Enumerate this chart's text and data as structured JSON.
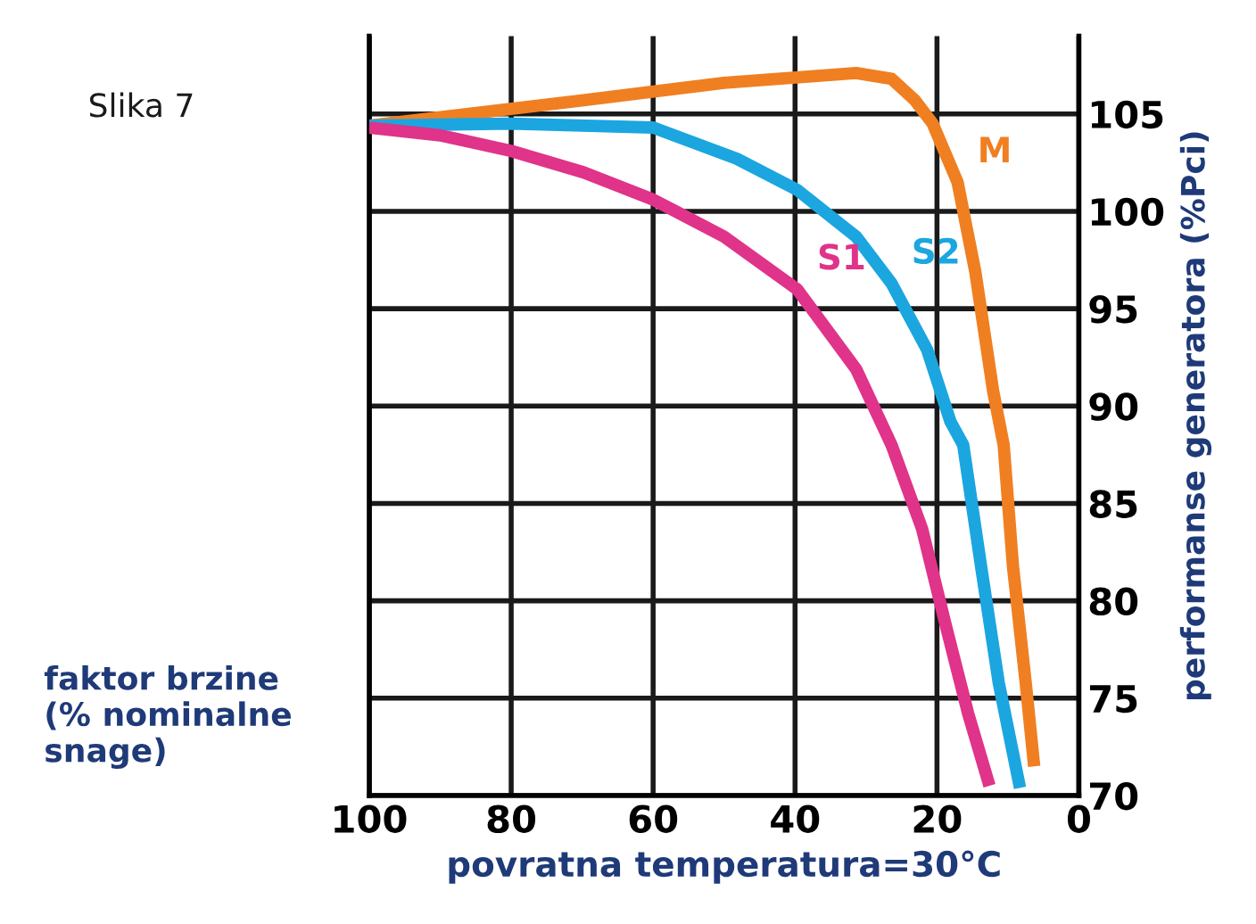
{
  "chart_data": {
    "type": "line",
    "xlabel": "povratna temperatura=30°C",
    "ylabel": "performanse generatora (%Pci)",
    "annotations": [
      "Slika 7",
      "faktor brzine\n(% nominalne\nsnage)"
    ],
    "xlim": [
      100,
      0
    ],
    "xticks": [
      100,
      80,
      60,
      40,
      20,
      0
    ],
    "ylim": [
      70,
      109
    ],
    "yticks": [
      70,
      75,
      80,
      85,
      90,
      95,
      100,
      105
    ],
    "grid": true,
    "marker": "none",
    "line_style": "solid",
    "series": [
      {
        "name": "M",
        "color": "#f07f22",
        "x": [
          100,
          69.8,
          50,
          31.4,
          26.4,
          23.1,
          20.6,
          17.1,
          14.6,
          12.1,
          10.6,
          9.3,
          7.5,
          6.3
        ],
        "values": [
          104.4,
          105.7,
          106.6,
          107.1,
          106.8,
          105.7,
          104.5,
          101.5,
          96.9,
          90.8,
          88,
          81.8,
          75.8,
          71.5
        ]
      },
      {
        "name": "S2",
        "color": "#1ba6e0",
        "x": [
          100,
          80,
          60,
          48.2,
          39.7,
          31.4,
          26.4,
          21.4,
          18.1,
          16.3,
          13.8,
          11.3,
          8.3
        ],
        "values": [
          104.4,
          104.5,
          104.3,
          102.7,
          101.1,
          98.7,
          96.3,
          92.9,
          89.2,
          88,
          81.8,
          75.8,
          70.4
        ]
      },
      {
        "name": "S1",
        "color": "#e0338a",
        "x": [
          100,
          90,
          80,
          69.8,
          60,
          50,
          39.7,
          31.4,
          26.4,
          22.1,
          18.8,
          15.6,
          12.6
        ],
        "values": [
          104.3,
          103.9,
          103.1,
          102,
          100.6,
          98.7,
          96,
          91.9,
          88,
          83.7,
          78.8,
          74.2,
          70.5
        ]
      }
    ]
  }
}
